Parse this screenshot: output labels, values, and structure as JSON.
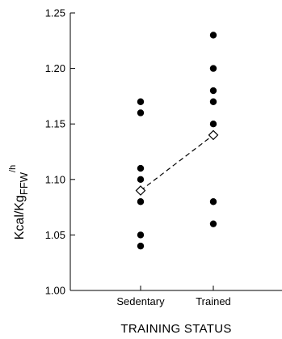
{
  "chart_data": {
    "type": "scatter",
    "xlabel": "TRAINING STATUS",
    "ylabel": {
      "base": "Kcal/Kg",
      "subscript": "FFW",
      "superscript": "/h"
    },
    "ylim": [
      1.0,
      1.25
    ],
    "yticks": [
      "1.00",
      "1.05",
      "1.10",
      "1.15",
      "1.20",
      "1.25"
    ],
    "yticks_values": [
      1.0,
      1.05,
      1.1,
      1.15,
      1.2,
      1.25
    ],
    "categories": [
      "Sedentary",
      "Trained"
    ],
    "grid": false,
    "legend": "none",
    "series": [
      {
        "marker": "filled-circle",
        "points": [
          {
            "category": "Sedentary",
            "values": [
              1.17,
              1.16,
              1.11,
              1.1,
              1.08,
              1.05,
              1.04
            ]
          },
          {
            "category": "Trained",
            "values": [
              1.23,
              1.2,
              1.18,
              1.17,
              1.15,
              1.08,
              1.06
            ]
          }
        ]
      },
      {
        "marker": "open-diamond",
        "line": "dashed",
        "points": [
          {
            "category": "Sedentary",
            "values": [
              1.09
            ]
          },
          {
            "category": "Trained",
            "values": [
              1.14
            ]
          }
        ]
      }
    ]
  }
}
